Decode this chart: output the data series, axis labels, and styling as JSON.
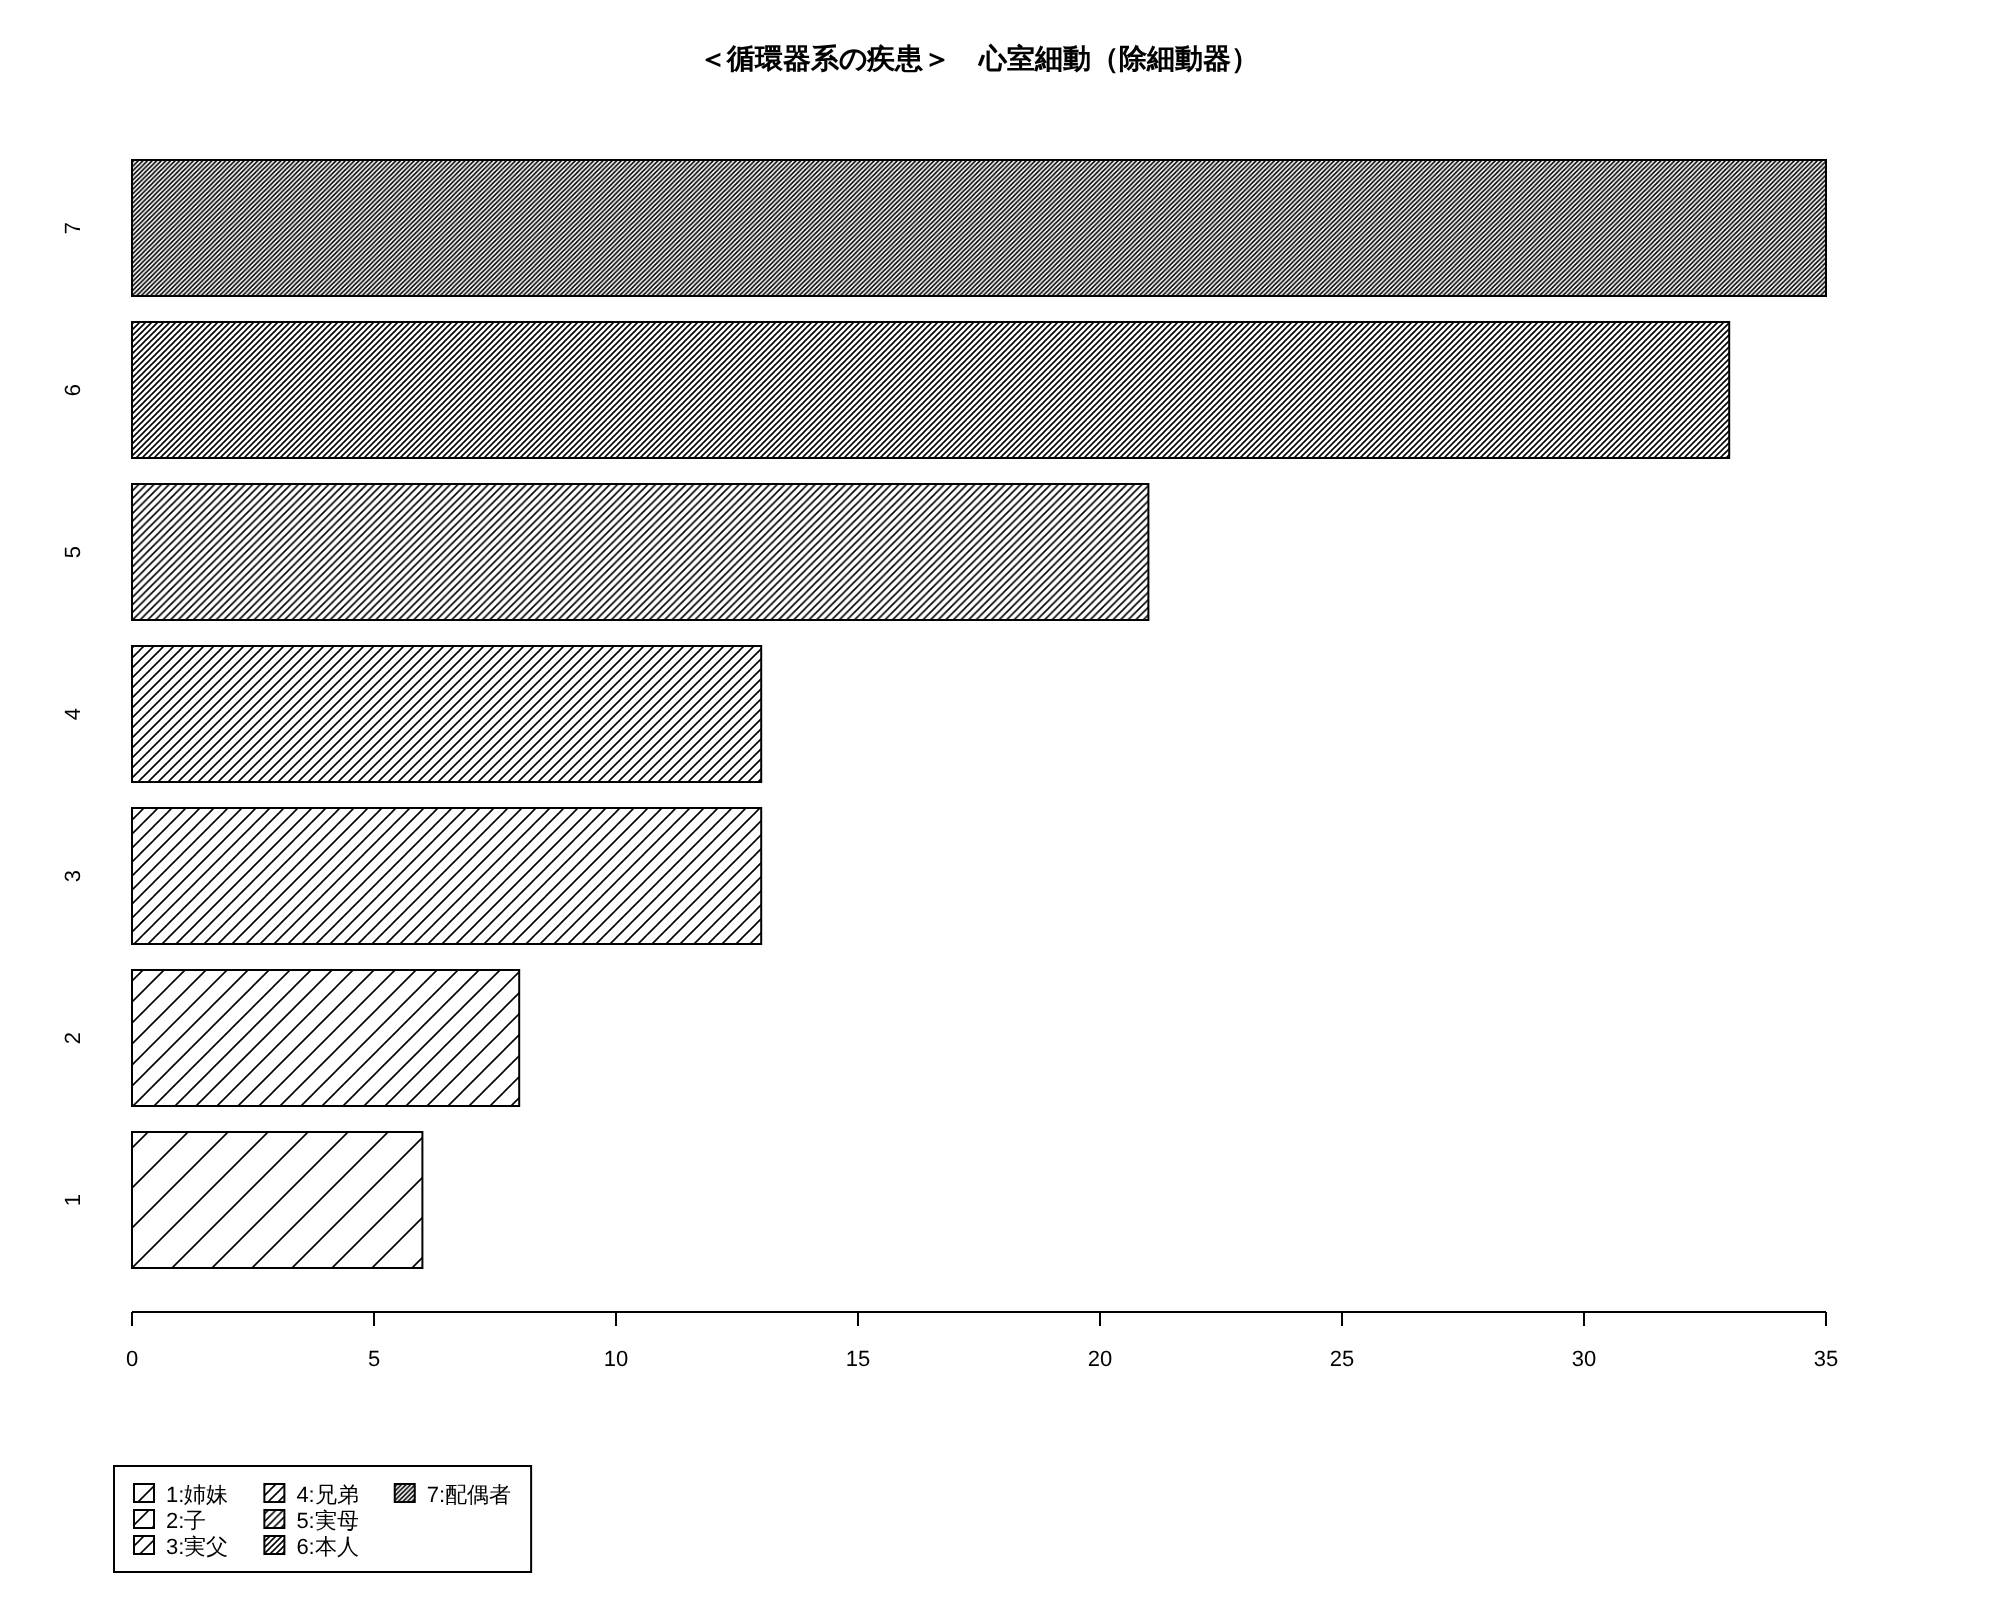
{
  "chart_data": {
    "type": "bar",
    "title": "＜循環器系の疾患＞　心室細動（除細動器）",
    "orientation": "horizontal",
    "stacked": true,
    "categories": [
      "7",
      "6",
      "5",
      "4",
      "3",
      "2",
      "1"
    ],
    "series": [
      {
        "name": "1:姉妹",
        "color": "#000000",
        "values": [
          null,
          null,
          null,
          null,
          null,
          null,
          6
        ]
      },
      {
        "name": "2:子",
        "color": "#000000",
        "values": [
          null,
          null,
          null,
          null,
          null,
          8,
          null
        ]
      },
      {
        "name": "3:実父",
        "color": "#000000",
        "values": [
          null,
          null,
          null,
          null,
          13,
          null,
          null
        ]
      },
      {
        "name": "4:兄弟",
        "color": "#000000",
        "values": [
          null,
          null,
          null,
          13,
          null,
          null,
          null
        ]
      },
      {
        "name": "5:実母",
        "color": "#000000",
        "values": [
          null,
          null,
          21,
          null,
          null,
          null,
          null
        ]
      },
      {
        "name": "6:本人",
        "color": "#000000",
        "values": [
          null,
          33,
          null,
          null,
          null,
          null,
          null
        ]
      },
      {
        "name": "7:配偶者",
        "color": "#000000",
        "values": [
          35,
          null,
          null,
          null,
          null,
          null,
          null
        ]
      }
    ],
    "xlim": [
      0,
      35
    ],
    "xticks": [
      0,
      5,
      10,
      15,
      20,
      25,
      30,
      35
    ],
    "legend": "bottom left"
  }
}
